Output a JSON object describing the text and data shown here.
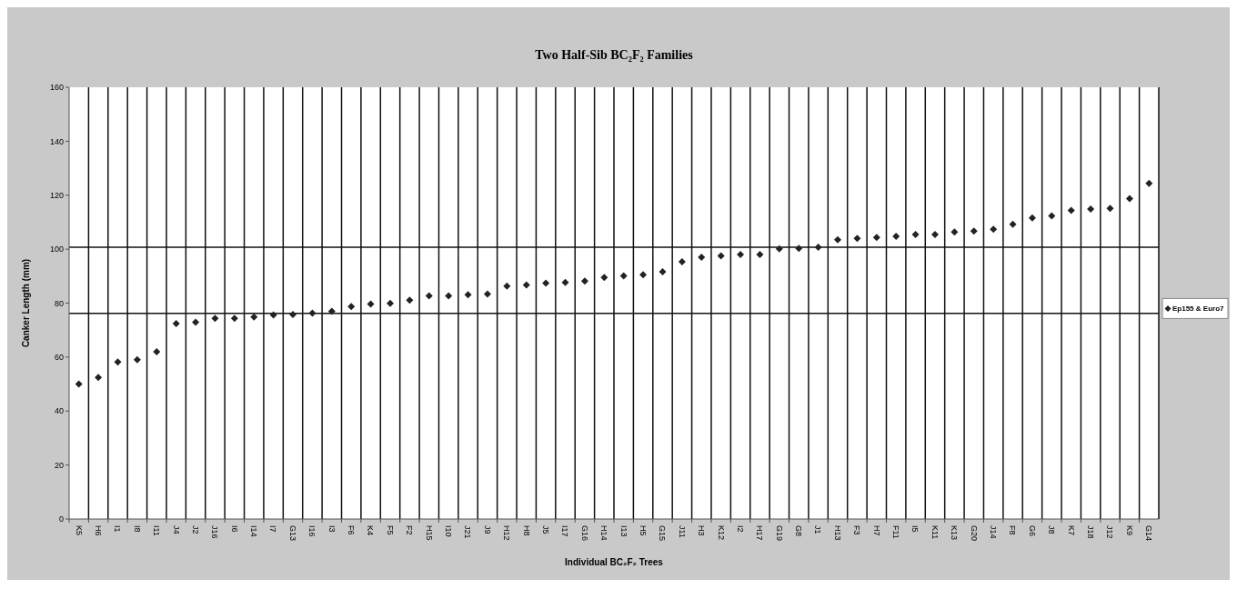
{
  "chart_data": {
    "type": "scatter",
    "title": "Two Half-Sib BC₂F₂ Families",
    "xlabel": "Individual BC₂F₂ Trees",
    "ylabel": "Canker Length (mm)",
    "categories": [
      "K5",
      "H6",
      "I1",
      "I8",
      "I11",
      "J4",
      "J2",
      "J16",
      "I6",
      "I14",
      "I7",
      "G13",
      "I16",
      "I3",
      "F6",
      "K4",
      "F5",
      "F2",
      "H15",
      "I10",
      "J21",
      "J9",
      "H12",
      "H8",
      "J5",
      "I17",
      "G16",
      "H14",
      "I13",
      "H5",
      "G15",
      "J11",
      "H3",
      "K12",
      "I2",
      "H17",
      "G19",
      "G8",
      "J1",
      "H13",
      "F3",
      "H7",
      "F11",
      "I5",
      "K11",
      "K13",
      "G20",
      "J14",
      "F8",
      "G6",
      "J8",
      "K7",
      "J18",
      "J12",
      "K9",
      "G14"
    ],
    "series": [
      {
        "name": "Ep155 & Euro7",
        "color": "#222222",
        "values": [
          50,
          52.5,
          58.2,
          59,
          62,
          72.4,
          72.9,
          74.4,
          74.4,
          74.9,
          75.6,
          75.8,
          76.3,
          77,
          78.7,
          79.7,
          79.9,
          81.1,
          82.7,
          82.7,
          83.1,
          83.4,
          86.3,
          86.7,
          87.4,
          87.7,
          88.2,
          89.5,
          90.1,
          90.5,
          91.6,
          95.3,
          97,
          97.5,
          98,
          98,
          100.1,
          100.3,
          100.7,
          103.5,
          104,
          104.3,
          104.8,
          105.4,
          105.4,
          106.4,
          106.7,
          107.4,
          109.2,
          111.6,
          112.3,
          114.4,
          114.9,
          115.1,
          118.7,
          124.4
        ]
      }
    ],
    "ylim": [
      0,
      160
    ],
    "yticks": [
      0,
      20,
      40,
      60,
      80,
      100,
      120,
      140,
      160
    ],
    "ref_lines": [
      {
        "axis": "y",
        "value": 100.7,
        "color": "#111111"
      },
      {
        "axis": "y",
        "value": 76.2,
        "color": "#111111"
      }
    ],
    "grid": "x",
    "legend": "right",
    "marker": "diamond"
  }
}
